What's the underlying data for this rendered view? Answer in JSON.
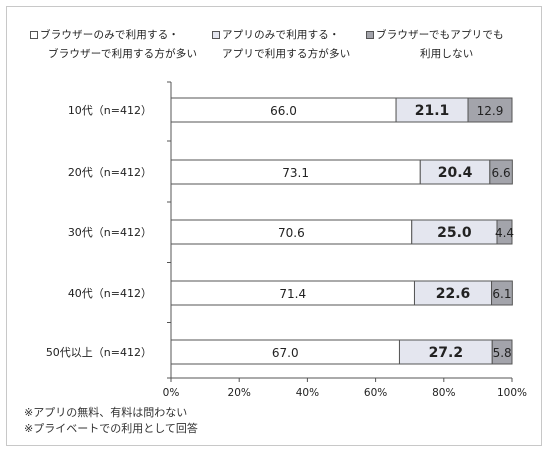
{
  "legend": [
    {
      "line1": "ブラウザーのみで利用する・",
      "line2": "ブラウザーで利用する方が多い",
      "color": "#ffffff"
    },
    {
      "line1": "アプリのみで利用する・",
      "line2": "アプリで利用する方が多い",
      "color": "#e4e6ef"
    },
    {
      "line1": "ブラウザーでもアプリでも",
      "line2": "利用しない",
      "color": "#a3a4ab"
    }
  ],
  "chart_data": {
    "type": "bar",
    "orientation": "horizontal",
    "stacked": true,
    "categories": [
      "10代（n=412）",
      "20代（n=412）",
      "30代（n=412）",
      "40代（n=412）",
      "50代以上（n=412）"
    ],
    "series": [
      {
        "name": "ブラウザーのみで利用する・ブラウザーで利用する方が多い",
        "values": [
          66.0,
          73.1,
          70.6,
          71.4,
          67.0
        ],
        "color": "#ffffff"
      },
      {
        "name": "アプリのみで利用する・アプリで利用する方が多い",
        "values": [
          21.1,
          20.4,
          25.0,
          22.6,
          27.2
        ],
        "color": "#e4e6ef"
      },
      {
        "name": "ブラウザーでもアプリでも利用しない",
        "values": [
          12.9,
          6.6,
          4.4,
          6.1,
          5.8
        ],
        "color": "#a3a4ab"
      }
    ],
    "value_labels": [
      [
        "66.0",
        "21.1",
        "12.9"
      ],
      [
        "73.1",
        "20.4",
        "6.6"
      ],
      [
        "70.6",
        "25.0",
        "4.4"
      ],
      [
        "71.4",
        "22.6",
        "6.1"
      ],
      [
        "67.0",
        "27.2",
        "5.8"
      ]
    ],
    "xlim": [
      0,
      100
    ],
    "xticks": [
      "0%",
      "20%",
      "40%",
      "60%",
      "80%",
      "100%"
    ],
    "grid": false,
    "legend_position": "top"
  },
  "notes": [
    "※アプリの無料、有料は問わない",
    "※プライベートでの利用として回答"
  ]
}
